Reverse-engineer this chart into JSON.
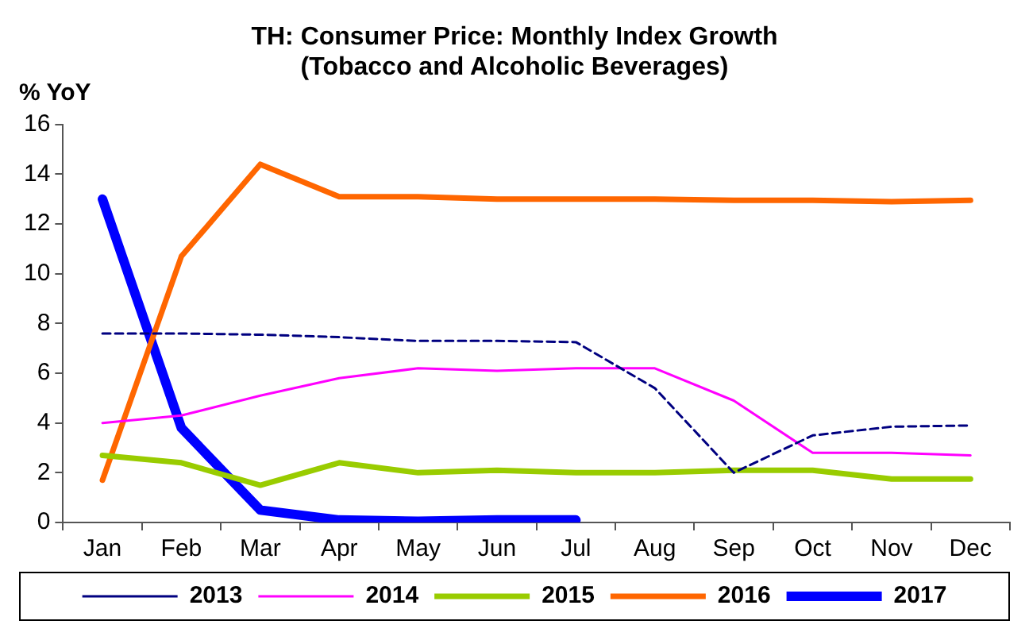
{
  "chart_data": {
    "type": "line",
    "title": "TH: Consumer Price: Monthly Index Growth\n(Tobacco and Alcoholic Beverages)",
    "ylabel": "% YoY",
    "categories": [
      "Jan",
      "Feb",
      "Mar",
      "Apr",
      "May",
      "Jun",
      "Jul",
      "Aug",
      "Sep",
      "Oct",
      "Nov",
      "Dec"
    ],
    "ylim": [
      0,
      16
    ],
    "yticks": [
      0,
      2,
      4,
      6,
      8,
      10,
      12,
      14,
      16
    ],
    "grid": false,
    "legend": "bottom",
    "marker": "none",
    "series": [
      {
        "name": "2013",
        "color": "#000080",
        "line_style": "dashed",
        "values": [
          7.6,
          7.6,
          7.55,
          7.45,
          7.3,
          7.3,
          7.25,
          5.4,
          2.0,
          3.5,
          3.85,
          3.9
        ]
      },
      {
        "name": "2014",
        "color": "#ff00ff",
        "values": [
          4.0,
          4.3,
          5.1,
          5.8,
          6.2,
          6.1,
          6.2,
          6.2,
          4.9,
          2.8,
          2.8,
          2.7
        ]
      },
      {
        "name": "2015",
        "color": "#99cc00",
        "values": [
          2.7,
          2.4,
          1.5,
          2.4,
          2.0,
          2.1,
          2.0,
          2.0,
          2.1,
          2.1,
          1.75,
          1.75
        ]
      },
      {
        "name": "2016",
        "color": "#ff6600",
        "values": [
          1.7,
          10.7,
          14.4,
          13.1,
          13.1,
          13.0,
          13.0,
          13.0,
          12.95,
          12.95,
          12.9,
          12.95
        ]
      },
      {
        "name": "2017",
        "color": "#0000ff",
        "values": [
          13.0,
          3.8,
          0.5,
          0.1,
          0.05,
          0.1,
          0.1,
          null,
          null,
          null,
          null,
          null
        ]
      }
    ]
  }
}
